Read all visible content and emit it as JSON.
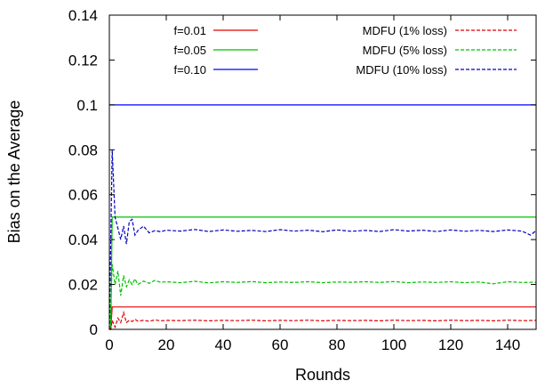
{
  "chart_data": {
    "type": "line",
    "xlabel": "Rounds",
    "ylabel": "Bias on the Average",
    "xlim": [
      0,
      150
    ],
    "ylim": [
      0,
      0.14
    ],
    "xticks": [
      "0",
      "20",
      "40",
      "60",
      "80",
      "100",
      "120",
      "140"
    ],
    "yticks": [
      "0",
      "0.02",
      "0.04",
      "0.06",
      "0.08",
      "0.1",
      "0.12",
      "0.14"
    ],
    "grid": false,
    "legend_position": "top",
    "series": [
      {
        "name": "f=0.01",
        "color": "#e00000",
        "dash": "solid",
        "x": [
          0,
          0.5,
          1,
          150
        ],
        "y": [
          0,
          0,
          0.01,
          0.01
        ]
      },
      {
        "name": "f=0.05",
        "color": "#00c000",
        "dash": "solid",
        "x": [
          0,
          0.5,
          1,
          150
        ],
        "y": [
          0,
          0,
          0.05,
          0.05
        ]
      },
      {
        "name": "f=0.10",
        "color": "#0000ff",
        "dash": "solid",
        "x": [
          0,
          150
        ],
        "y": [
          0.1,
          0.1
        ]
      },
      {
        "name": "MDFU (1% loss)",
        "color": "#e00000",
        "dash": "dashed",
        "x": [
          0,
          0.5,
          1,
          2,
          3,
          4,
          5,
          6,
          7,
          8,
          9,
          10,
          12,
          14,
          16,
          18,
          20,
          25,
          30,
          35,
          40,
          45,
          50,
          55,
          60,
          65,
          70,
          75,
          80,
          85,
          90,
          95,
          100,
          105,
          110,
          115,
          120,
          125,
          130,
          135,
          140,
          145,
          150
        ],
        "y": [
          0,
          0,
          0.004,
          0.001,
          0.005,
          0.003,
          0.0075,
          0.003,
          0.004,
          0.0035,
          0.0045,
          0.0037,
          0.004,
          0.0036,
          0.0042,
          0.0038,
          0.004,
          0.0039,
          0.0041,
          0.0038,
          0.004,
          0.0039,
          0.0041,
          0.0038,
          0.004,
          0.0039,
          0.0041,
          0.0038,
          0.004,
          0.0039,
          0.004,
          0.0038,
          0.0041,
          0.0039,
          0.004,
          0.0038,
          0.0041,
          0.0039,
          0.004,
          0.0038,
          0.0041,
          0.0039,
          0.004
        ]
      },
      {
        "name": "MDFU (5% loss)",
        "color": "#00c000",
        "dash": "dashed",
        "x": [
          0,
          0.5,
          1,
          2,
          3,
          4,
          5,
          6,
          7,
          8,
          9,
          10,
          12,
          14,
          16,
          18,
          20,
          25,
          30,
          35,
          40,
          45,
          50,
          55,
          60,
          65,
          70,
          75,
          80,
          85,
          90,
          95,
          100,
          105,
          110,
          115,
          120,
          125,
          130,
          135,
          140,
          145,
          150
        ],
        "y": [
          0,
          0.01,
          0.029,
          0.02,
          0.026,
          0.015,
          0.024,
          0.019,
          0.022,
          0.02,
          0.0225,
          0.02,
          0.0215,
          0.0205,
          0.0218,
          0.021,
          0.0212,
          0.0208,
          0.0214,
          0.0207,
          0.0212,
          0.0209,
          0.0213,
          0.0208,
          0.0211,
          0.0209,
          0.0212,
          0.0208,
          0.0211,
          0.021,
          0.0212,
          0.0209,
          0.0213,
          0.0208,
          0.0211,
          0.0209,
          0.0212,
          0.0208,
          0.0211,
          0.0203,
          0.0212,
          0.0209,
          0.021
        ]
      },
      {
        "name": "MDFU (10% loss)",
        "color": "#0000c0",
        "dash": "dashed",
        "x": [
          0,
          0.5,
          1,
          2,
          3,
          4,
          5,
          6,
          7,
          8,
          9,
          10,
          12,
          14,
          16,
          18,
          20,
          25,
          30,
          35,
          40,
          45,
          50,
          55,
          60,
          65,
          70,
          75,
          80,
          85,
          90,
          95,
          100,
          105,
          110,
          115,
          120,
          125,
          130,
          135,
          140,
          145,
          148,
          150
        ],
        "y": [
          0,
          0.04,
          0.08,
          0.05,
          0.045,
          0.04,
          0.046,
          0.038,
          0.048,
          0.049,
          0.042,
          0.044,
          0.046,
          0.043,
          0.044,
          0.0435,
          0.0442,
          0.0438,
          0.0445,
          0.0436,
          0.0443,
          0.0437,
          0.0441,
          0.0436,
          0.0444,
          0.0438,
          0.0442,
          0.0435,
          0.0443,
          0.0437,
          0.0441,
          0.0436,
          0.0444,
          0.0438,
          0.0442,
          0.0436,
          0.0443,
          0.0437,
          0.0441,
          0.0436,
          0.0443,
          0.0438,
          0.042,
          0.044
        ]
      }
    ]
  }
}
